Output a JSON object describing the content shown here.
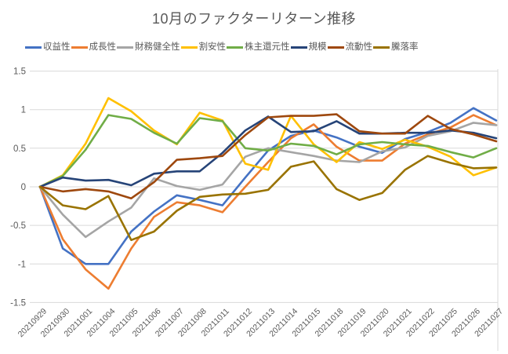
{
  "title": "10月のファクターリターン推移",
  "chart_data": {
    "type": "line",
    "title": "10月のファクターリターン推移",
    "x_labels": [
      "20210929",
      "20210930",
      "20211001",
      "20211004",
      "20211005",
      "20211006",
      "20211007",
      "20211008",
      "20211011",
      "20211012",
      "20211013",
      "20211014",
      "20211015",
      "20211018",
      "20211019",
      "20211020",
      "20211021",
      "20211022",
      "20211025",
      "20211026",
      "20211027"
    ],
    "series": [
      {
        "key": "profitability",
        "name": "収益性",
        "color": "#4472C4",
        "values": [
          0,
          -0.8,
          -1.0,
          -1.0,
          -0.58,
          -0.32,
          -0.11,
          -0.17,
          -0.24,
          0.12,
          0.47,
          0.66,
          0.73,
          0.64,
          0.52,
          0.44,
          0.62,
          0.71,
          0.83,
          1.02,
          0.86
        ]
      },
      {
        "key": "growth",
        "name": "成長性",
        "color": "#ED7D31",
        "values": [
          0,
          -0.68,
          -1.07,
          -1.32,
          -0.8,
          -0.39,
          -0.2,
          -0.24,
          -0.33,
          0.0,
          0.32,
          0.63,
          0.81,
          0.52,
          0.34,
          0.34,
          0.56,
          0.68,
          0.77,
          0.93,
          0.8
        ]
      },
      {
        "key": "financial-health",
        "name": "財務健全性",
        "color": "#A5A5A5",
        "values": [
          0,
          -0.36,
          -0.65,
          -0.45,
          -0.27,
          0.11,
          0.01,
          -0.04,
          0.03,
          0.39,
          0.5,
          0.45,
          0.4,
          0.34,
          0.32,
          0.46,
          0.51,
          0.66,
          0.72,
          0.83,
          0.8
        ]
      },
      {
        "key": "value",
        "name": "割安性",
        "color": "#FFC000",
        "values": [
          0,
          0.15,
          0.56,
          1.15,
          0.98,
          0.73,
          0.55,
          0.96,
          0.86,
          0.3,
          0.22,
          0.92,
          0.55,
          0.32,
          0.58,
          0.49,
          0.61,
          0.52,
          0.39,
          0.15,
          0.25
        ]
      },
      {
        "key": "shareholder-return",
        "name": "株主還元性",
        "color": "#70AD47",
        "values": [
          0,
          0.14,
          0.48,
          0.93,
          0.88,
          0.7,
          0.56,
          0.89,
          0.85,
          0.5,
          0.47,
          0.56,
          0.53,
          0.42,
          0.55,
          0.58,
          0.55,
          0.53,
          0.45,
          0.38,
          0.5
        ]
      },
      {
        "key": "size",
        "name": "規模",
        "color": "#264478",
        "values": [
          0,
          0.12,
          0.08,
          0.09,
          0.02,
          0.17,
          0.2,
          0.2,
          0.44,
          0.73,
          0.91,
          0.71,
          0.72,
          0.85,
          0.69,
          0.69,
          0.7,
          0.7,
          0.73,
          0.7,
          0.63
        ]
      },
      {
        "key": "liquidity",
        "name": "流動性",
        "color": "#9E480E",
        "values": [
          0,
          -0.06,
          -0.03,
          -0.06,
          -0.15,
          0.06,
          0.35,
          0.37,
          0.4,
          0.67,
          0.9,
          0.92,
          0.92,
          0.94,
          0.72,
          0.69,
          0.69,
          0.92,
          0.75,
          0.68,
          0.59
        ]
      },
      {
        "key": "change-rate",
        "name": "騰落率",
        "color": "#997300",
        "values": [
          0,
          -0.24,
          -0.29,
          -0.12,
          -0.69,
          -0.58,
          -0.31,
          -0.13,
          -0.1,
          -0.09,
          -0.04,
          0.26,
          0.33,
          -0.03,
          -0.17,
          -0.08,
          0.22,
          0.4,
          0.31,
          0.24,
          0.25
        ]
      }
    ],
    "ylim": [
      -1.5,
      1.5
    ],
    "ytick_step": 0.5,
    "y_tick_labels": [
      "1.5",
      "1",
      "0.5",
      "0",
      "-0.5",
      "-1",
      "-1.5"
    ],
    "grid": true,
    "legend_position": "top",
    "x_label_rotation_deg": 45
  }
}
